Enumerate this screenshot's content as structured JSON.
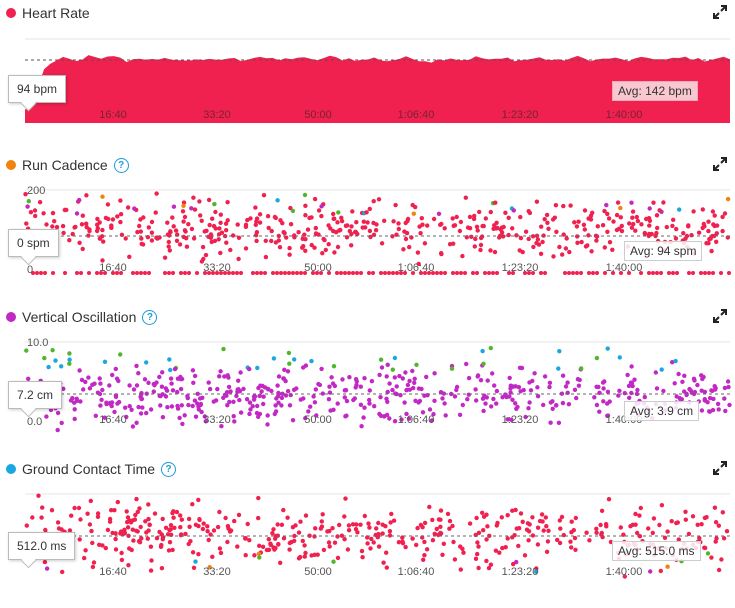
{
  "time_ticks": [
    "16:40",
    "33:20",
    "50:00",
    "1:06:40",
    "1:23:20",
    "1:40:00"
  ],
  "panels": [
    {
      "id": "heart-rate",
      "title": "Heart Rate",
      "color": "#f0204f",
      "has_help": false,
      "tooltip": "94 bpm",
      "avg": "Avg: 142 bpm",
      "y_ticks": [],
      "chart_data": {
        "type": "area",
        "title": "Heart Rate",
        "unit": "bpm",
        "average": 142,
        "x_range_minutes": [
          0,
          117
        ],
        "series": [
          {
            "values": [
              30,
              45,
              80,
              120,
              135,
              140,
              145,
              143,
              138,
              145,
              150,
              147,
              142,
              148,
              152,
              145,
              140,
              143,
              147,
              145,
              142,
              140,
              144,
              146,
              142,
              139,
              142,
              145,
              143,
              141,
              140,
              143,
              146,
              144,
              142,
              145,
              148,
              150,
              146,
              143,
              141,
              144,
              146,
              148,
              145,
              142,
              143,
              146,
              149,
              147,
              144,
              145,
              143,
              141,
              144,
              146,
              143,
              140,
              142,
              145,
              147,
              145,
              143,
              141,
              139,
              142,
              145,
              147,
              144,
              142,
              145,
              148,
              146,
              143,
              142,
              144,
              146,
              143,
              141,
              143,
              145,
              147,
              144,
              142,
              140,
              143,
              146,
              148,
              145,
              143,
              142,
              144,
              146,
              145,
              142,
              141,
              143,
              145,
              147,
              146,
              143,
              142,
              144,
              146,
              148,
              145,
              143,
              142,
              144,
              146,
              147,
              145
            ]
          }
        ]
      }
    },
    {
      "id": "run-cadence",
      "title": "Run Cadence",
      "color": "#f0820f",
      "has_help": true,
      "tooltip": "0 spm",
      "avg": "Avg: 94 spm",
      "y_ticks": [
        "200",
        "0"
      ],
      "chart_data": {
        "type": "scatter",
        "title": "Run Cadence",
        "unit": "spm",
        "average": 94,
        "ylim": [
          0,
          200
        ]
      }
    },
    {
      "id": "vertical-oscillation",
      "title": "Vertical Oscillation",
      "color": "#c228c4",
      "has_help": true,
      "tooltip": "7.2 cm",
      "avg": "Avg: 3.9 cm",
      "y_ticks": [
        "10.0",
        "0.0"
      ],
      "chart_data": {
        "type": "scatter",
        "title": "Vertical Oscillation",
        "unit": "cm",
        "average": 3.9,
        "ylim": [
          0,
          10
        ]
      }
    },
    {
      "id": "ground-contact-time",
      "title": "Ground Contact Time",
      "color": "#1aa7e0",
      "has_help": true,
      "tooltip": "512.0 ms",
      "avg": "Avg: 515.0 ms",
      "y_ticks": [],
      "chart_data": {
        "type": "scatter",
        "title": "Ground Contact Time",
        "unit": "ms",
        "average": 515.0
      }
    }
  ],
  "colors": {
    "red": "#f0204f",
    "orange": "#f0820f",
    "green": "#52b52e",
    "blue": "#1aa7e0",
    "purple": "#c228c4"
  }
}
